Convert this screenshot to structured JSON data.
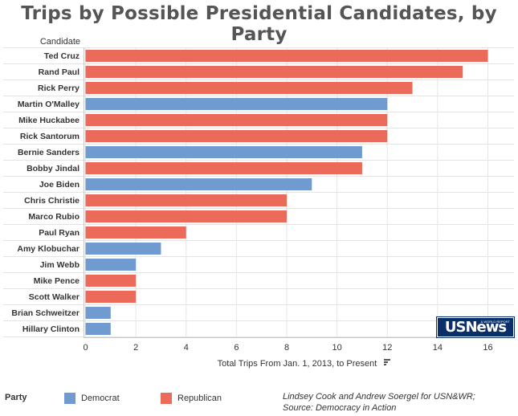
{
  "title": "Trips by Possible Presidential Candidates, by Party",
  "chart_data": {
    "type": "bar",
    "orientation": "horizontal",
    "categories_label": "Candidate",
    "xlabel": "Total Trips From Jan. 1, 2013, to Present",
    "xlim": [
      0,
      16.8
    ],
    "xticks": [
      0,
      2,
      4,
      6,
      8,
      10,
      12,
      14,
      16
    ],
    "grid": true,
    "legend_title": "Party",
    "legend": [
      {
        "name": "Democrat",
        "color": "#6f9bd1"
      },
      {
        "name": "Republican",
        "color": "#ec6a5a"
      }
    ],
    "bars": [
      {
        "name": "Ted Cruz",
        "value": 16,
        "party": "Republican"
      },
      {
        "name": "Rand Paul",
        "value": 15,
        "party": "Republican"
      },
      {
        "name": "Rick Perry",
        "value": 13,
        "party": "Republican"
      },
      {
        "name": "Martin O'Malley",
        "value": 12,
        "party": "Democrat"
      },
      {
        "name": "Mike Huckabee",
        "value": 12,
        "party": "Republican"
      },
      {
        "name": "Rick Santorum",
        "value": 12,
        "party": "Republican"
      },
      {
        "name": "Bernie Sanders",
        "value": 11,
        "party": "Democrat"
      },
      {
        "name": "Bobby Jindal",
        "value": 11,
        "party": "Republican"
      },
      {
        "name": "Joe Biden",
        "value": 9,
        "party": "Democrat"
      },
      {
        "name": "Chris Christie",
        "value": 8,
        "party": "Republican"
      },
      {
        "name": "Marco Rubio",
        "value": 8,
        "party": "Republican"
      },
      {
        "name": "Paul Ryan",
        "value": 4,
        "party": "Republican"
      },
      {
        "name": "Amy Klobuchar",
        "value": 3,
        "party": "Democrat"
      },
      {
        "name": "Jim Webb",
        "value": 2,
        "party": "Democrat"
      },
      {
        "name": "Mike Pence",
        "value": 2,
        "party": "Republican"
      },
      {
        "name": "Scott Walker",
        "value": 2,
        "party": "Republican"
      },
      {
        "name": "Brian Schweitzer",
        "value": 1,
        "party": "Democrat"
      },
      {
        "name": "Hillary Clinton",
        "value": 1,
        "party": "Democrat"
      }
    ]
  },
  "credit": {
    "line1": "Lindsey Cook and Andrew Soergel for USN&WR;",
    "line2": "Source: Democracy in Action"
  },
  "logo": {
    "text": "USNews",
    "small": "& WORLD REPORT"
  },
  "sort_icon": "sort-descending-icon"
}
